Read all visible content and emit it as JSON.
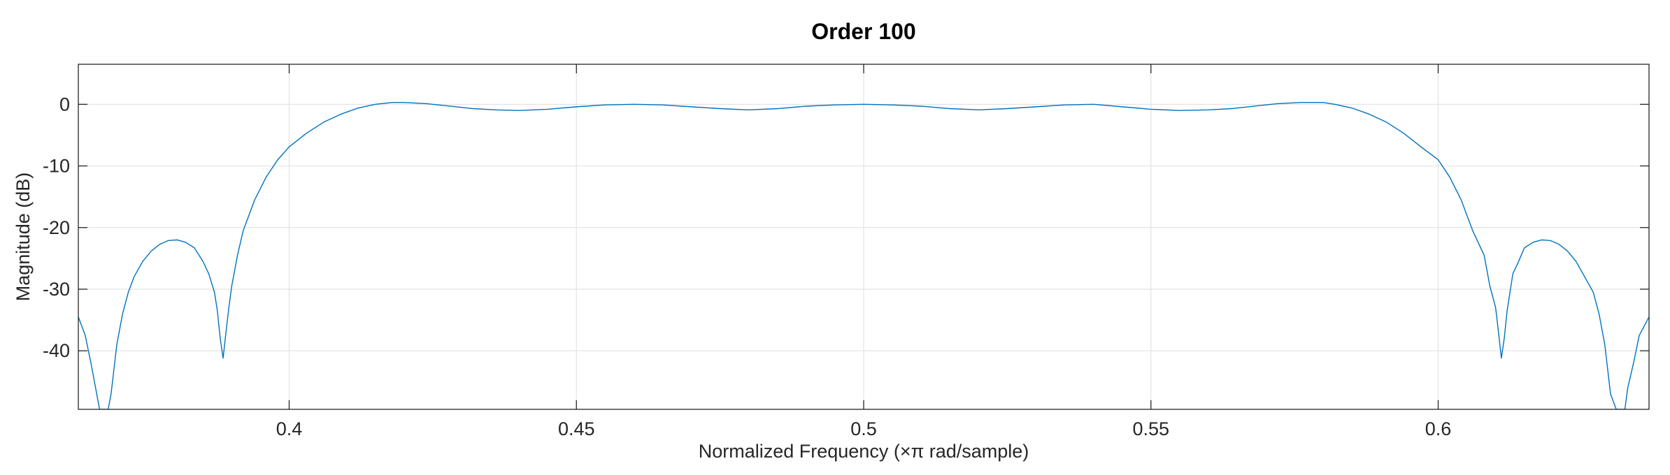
{
  "chart_data": {
    "type": "line",
    "title": "Order 100",
    "xlabel": "Normalized Frequency  (×π rad/sample)",
    "ylabel": "Magnitude (dB)",
    "xlim": [
      0.3633,
      0.6367
    ],
    "ylim": [
      -49.5,
      6.5
    ],
    "xticks": [
      0.4,
      0.45,
      0.5,
      0.55,
      0.6
    ],
    "xtick_labels": [
      "0.4",
      "0.45",
      "0.5",
      "0.55",
      "0.6"
    ],
    "yticks": [
      0,
      -10,
      -20,
      -30,
      -40
    ],
    "ytick_labels": [
      "0",
      "-10",
      "-20",
      "-30",
      "-40"
    ],
    "grid": true,
    "color": "#0072bd",
    "series": [
      {
        "x": [
          0.3633,
          0.3645,
          0.3655,
          0.3663,
          0.367,
          0.3675,
          0.368,
          0.3685,
          0.369,
          0.37,
          0.371,
          0.372,
          0.373,
          0.3745,
          0.376,
          0.3775,
          0.379,
          0.3805,
          0.382,
          0.3835,
          0.385,
          0.386,
          0.387,
          0.3875,
          0.388,
          0.3885,
          0.389,
          0.3895,
          0.39,
          0.391,
          0.392,
          0.394,
          0.396,
          0.398,
          0.4,
          0.403,
          0.406,
          0.409,
          0.412,
          0.415,
          0.418,
          0.42,
          0.424,
          0.428,
          0.432,
          0.436,
          0.44,
          0.445,
          0.45,
          0.455,
          0.46,
          0.465,
          0.47,
          0.475,
          0.48,
          0.485,
          0.49,
          0.495,
          0.5,
          0.505,
          0.51,
          0.515,
          0.52,
          0.525,
          0.53,
          0.535,
          0.54,
          0.545,
          0.55,
          0.555,
          0.56,
          0.564,
          0.568,
          0.572,
          0.576,
          0.58,
          0.582,
          0.585,
          0.588,
          0.591,
          0.594,
          0.597,
          0.6,
          0.602,
          0.604,
          0.606,
          0.608,
          0.609,
          0.61,
          0.6105,
          0.611,
          0.6115,
          0.612,
          0.6125,
          0.613,
          0.614,
          0.615,
          0.6165,
          0.618,
          0.6195,
          0.621,
          0.6225,
          0.624,
          0.6255,
          0.627,
          0.628,
          0.629,
          0.63,
          0.631,
          0.6315,
          0.632,
          0.6325,
          0.633,
          0.634,
          0.635,
          0.6367
        ],
        "y": [
          -34.5,
          -37.5,
          -42,
          -46,
          -49.5,
          -49.5,
          -49.5,
          -49.5,
          -47,
          -39,
          -34,
          -30.5,
          -28,
          -25.5,
          -23.8,
          -22.7,
          -22.1,
          -22.0,
          -22.4,
          -23.3,
          -25.5,
          -27.5,
          -30.5,
          -33.5,
          -38,
          -41.2,
          -37,
          -33,
          -29.5,
          -24.5,
          -20.5,
          -15.5,
          -11.8,
          -9.0,
          -6.9,
          -4.7,
          -2.9,
          -1.6,
          -0.6,
          0.0,
          0.3,
          0.3,
          0.1,
          -0.3,
          -0.7,
          -0.9,
          -1.0,
          -0.8,
          -0.4,
          -0.1,
          0.0,
          -0.1,
          -0.4,
          -0.7,
          -0.9,
          -0.7,
          -0.3,
          -0.1,
          0.0,
          -0.1,
          -0.3,
          -0.7,
          -0.9,
          -0.7,
          -0.4,
          -0.1,
          0.0,
          -0.4,
          -0.8,
          -1.0,
          -0.9,
          -0.7,
          -0.3,
          0.1,
          0.3,
          0.3,
          0.0,
          -0.6,
          -1.6,
          -2.9,
          -4.7,
          -6.9,
          -9.0,
          -11.8,
          -15.5,
          -20.5,
          -24.5,
          -29.5,
          -33,
          -37,
          -41.2,
          -38,
          -33.5,
          -30.5,
          -27.5,
          -25.5,
          -23.3,
          -22.4,
          -22.0,
          -22.1,
          -22.7,
          -23.8,
          -25.5,
          -28,
          -30.5,
          -34,
          -39,
          -47,
          -49.5,
          -49.5,
          -49.5,
          -49.5,
          -46,
          -42,
          -37.5,
          -34.5
        ]
      }
    ]
  }
}
